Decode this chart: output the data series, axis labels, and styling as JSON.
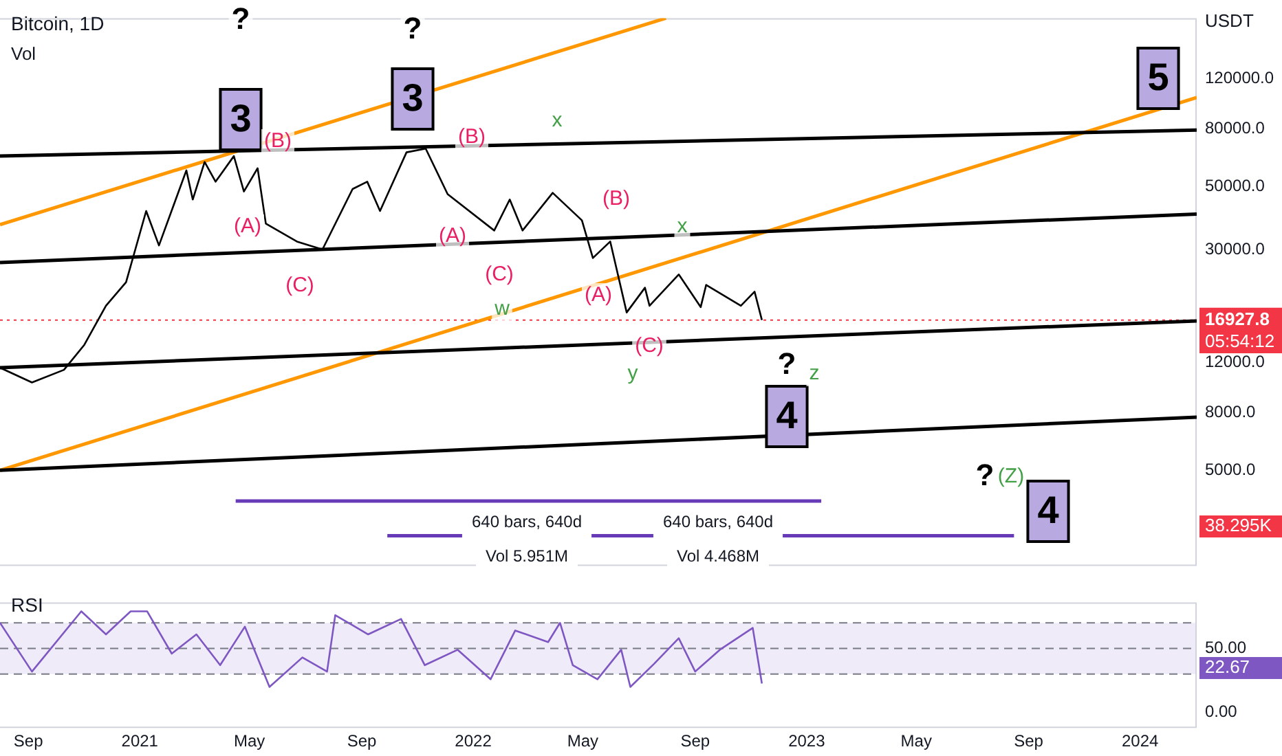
{
  "chart_data": [
    {
      "type": "line",
      "title": "Bitcoin, 1D",
      "subtitle": "Vol",
      "ylabel": "USDT",
      "log": true,
      "grid": false,
      "legend": false,
      "tick_labels": "y",
      "xlim": [
        "2020-08-01",
        "2024-03-03"
      ],
      "ylim": [
        2300,
        196000
      ],
      "yticks": [
        {
          "value": 5000,
          "label": "5000.0"
        },
        {
          "value": 8000,
          "label": "8000.0"
        },
        {
          "value": 12000,
          "label": "12000.0"
        },
        {
          "value": 30000,
          "label": "30000.0"
        },
        {
          "value": 50000,
          "label": "50000.0"
        },
        {
          "value": 80000,
          "label": "80000.0"
        },
        {
          "value": 120000,
          "label": "120000.0"
        }
      ],
      "series": [
        {
          "type": "line",
          "color": "#000000",
          "x": [
            "2020-08-01",
            "2020-09-05",
            "2020-10-10",
            "2020-11-01",
            "2020-11-25",
            "2020-12-17",
            "2021-01-08",
            "2021-01-22",
            "2021-02-21",
            "2021-02-28",
            "2021-03-13",
            "2021-03-25",
            "2021-04-14",
            "2021-04-25",
            "2021-05-10",
            "2021-05-19",
            "2021-06-22",
            "2021-07-20",
            "2021-08-22",
            "2021-09-07",
            "2021-09-21",
            "2021-10-20",
            "2021-11-10",
            "2021-12-04",
            "2022-01-24",
            "2022-02-10",
            "2022-02-24",
            "2022-03-29",
            "2022-04-30",
            "2022-05-12",
            "2022-05-31",
            "2022-06-18",
            "2022-07-08",
            "2022-07-13",
            "2022-08-14",
            "2022-09-07",
            "2022-09-13",
            "2022-10-21",
            "2022-11-05",
            "2022-11-13"
          ],
          "values": [
            11500,
            10200,
            11300,
            13800,
            19000,
            23000,
            41000,
            31000,
            57000,
            45000,
            61000,
            52000,
            64000,
            48000,
            58000,
            37000,
            32000,
            30000,
            49000,
            52000,
            41000,
            66000,
            68000,
            47000,
            35000,
            45000,
            35000,
            47500,
            38000,
            28000,
            32000,
            18000,
            22000,
            19000,
            24500,
            18800,
            22500,
            19000,
            21300,
            16927.8
          ]
        },
        {
          "type": "line",
          "color": "#000000",
          "x": [
            "2020-08-01",
            "2024-03-03"
          ],
          "values": [
            64000,
            79000
          ]
        },
        {
          "type": "line",
          "color": "#000000",
          "x": [
            "2020-08-01",
            "2024-03-03"
          ],
          "values": [
            27000,
            40000
          ]
        },
        {
          "type": "line",
          "color": "#000000",
          "x": [
            "2020-08-01",
            "2024-03-03"
          ],
          "values": [
            11500,
            16800
          ]
        },
        {
          "type": "line",
          "color": "#000000",
          "x": [
            "2020-08-01",
            "2024-03-03"
          ],
          "values": [
            5000,
            7700
          ]
        },
        {
          "type": "line",
          "color": "#ff9800",
          "x": [
            "2020-08-01",
            "2022-07-31"
          ],
          "values": [
            36700,
            196000
          ]
        },
        {
          "type": "line",
          "color": "#ff9800",
          "x": [
            "2020-08-01",
            "2024-03-03"
          ],
          "values": [
            5000,
            103000
          ]
        },
        {
          "type": "line",
          "color": "#673ab7",
          "x": [
            "2021-04-16",
            "2023-01-17"
          ],
          "values": [
            3900,
            3900
          ]
        },
        {
          "type": "line",
          "color": "#673ab7",
          "x": [
            "2021-09-29",
            "2023-08-16"
          ],
          "values": [
            2940,
            2940
          ]
        }
      ],
      "ref_lines": [
        {
          "axis": "y",
          "value": 16927.8,
          "label": "16927.8",
          "color": "#f23645",
          "line_style": "dotted"
        }
      ],
      "annotations": [
        "?",
        "3",
        "?",
        "3",
        "(B)",
        "(A)",
        "(C)",
        "(B)",
        "(A)",
        "(C)",
        "w",
        "x",
        "(B)",
        "(A)",
        "x",
        "y",
        "(C)",
        "?",
        "4",
        "z",
        "?",
        "(Z)",
        "4",
        "5",
        "640 bars, 640d",
        "640 bars, 640d",
        "Vol 5.951M",
        "Vol 4.468M",
        "05:54:12",
        "38.295K"
      ]
    },
    {
      "type": "line",
      "title": "RSI",
      "grid": false,
      "legend": false,
      "xlim": [
        "2020-08-01",
        "2024-03-03"
      ],
      "ylim": [
        -12,
        86
      ],
      "xticks": [
        {
          "value": "2020-09-01",
          "label": "Sep"
        },
        {
          "value": "2021-01-01",
          "label": "2021"
        },
        {
          "value": "2021-05-01",
          "label": "May"
        },
        {
          "value": "2021-09-01",
          "label": "Sep"
        },
        {
          "value": "2022-01-01",
          "label": "2022"
        },
        {
          "value": "2022-05-01",
          "label": "May"
        },
        {
          "value": "2022-09-01",
          "label": "Sep"
        },
        {
          "value": "2023-01-01",
          "label": "2023"
        },
        {
          "value": "2023-05-01",
          "label": "May"
        },
        {
          "value": "2023-09-01",
          "label": "Sep"
        },
        {
          "value": "2024-01-01",
          "label": "2024"
        }
      ],
      "yticks": [
        {
          "value": 0,
          "label": "0.00"
        },
        {
          "value": 50,
          "label": "50.00"
        }
      ],
      "series": [
        {
          "type": "line",
          "color": "#7e57c2",
          "x": [
            "2020-08-01",
            "2020-09-05",
            "2020-10-29",
            "2020-11-25",
            "2020-12-22",
            "2021-01-09",
            "2021-02-05",
            "2021-03-04",
            "2021-03-30",
            "2021-04-26",
            "2021-05-23",
            "2021-06-28",
            "2021-07-25",
            "2021-08-03",
            "2021-09-08",
            "2021-10-14",
            "2021-11-09",
            "2021-12-15",
            "2022-01-20",
            "2022-02-16",
            "2022-03-24",
            "2022-04-06",
            "2022-04-20",
            "2022-05-17",
            "2022-06-12",
            "2022-06-22",
            "2022-07-18",
            "2022-08-14",
            "2022-09-01",
            "2022-09-28",
            "2022-11-03",
            "2022-11-13"
          ],
          "values": [
            70,
            32,
            79,
            61,
            79,
            79,
            46,
            61,
            37,
            67,
            20,
            43,
            32,
            76,
            61,
            73,
            37,
            49,
            26,
            64,
            55,
            70,
            37,
            26,
            49,
            20,
            38,
            58,
            32,
            49,
            66,
            22.67
          ]
        }
      ],
      "bands": [
        {
          "axis": "y",
          "from": 30,
          "to": 70,
          "color": "#7e57c2"
        }
      ],
      "ref_lines": [
        {
          "axis": "y",
          "value": 70,
          "color": "#787b86",
          "line_style": "dashed"
        },
        {
          "axis": "y",
          "value": 50,
          "color": "#787b86",
          "line_style": "dashed"
        },
        {
          "axis": "y",
          "value": 30,
          "color": "#787b86",
          "line_style": "dashed"
        }
      ],
      "annotations": [
        "22.67"
      ]
    }
  ]
}
